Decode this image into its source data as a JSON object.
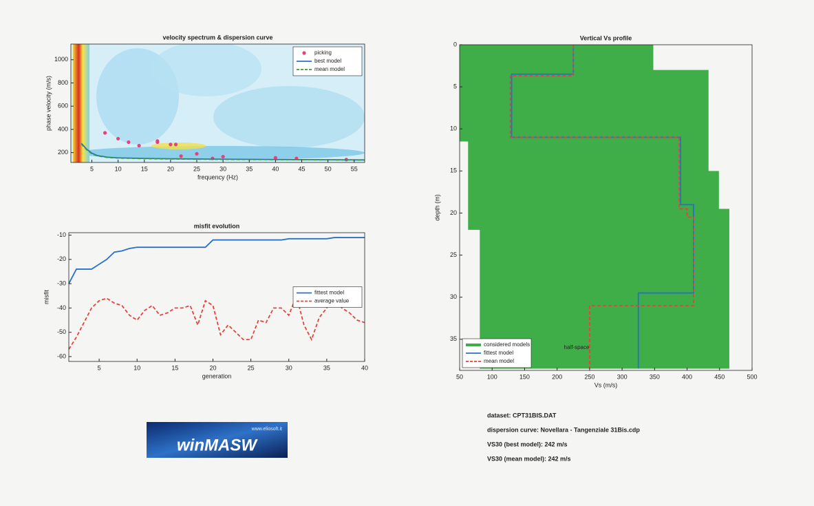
{
  "chart_data": [
    {
      "type": "line",
      "title": "velocity spectrum & dispersion curve",
      "xlabel": "frequency (Hz)",
      "ylabel": "phase velocity (m/s)",
      "xlim": [
        1,
        57
      ],
      "ylim": [
        115,
        1135
      ],
      "xticks": [
        5,
        10,
        15,
        20,
        25,
        30,
        35,
        40,
        45,
        50,
        55
      ],
      "yticks": [
        200,
        400,
        600,
        800,
        1000
      ],
      "legend": "upper right",
      "series": [
        {
          "name": "picking",
          "color": "#e8417a",
          "marker": "o",
          "x": [
            7.5,
            10,
            12,
            14,
            17.5,
            20,
            22,
            25,
            30,
            40,
            44,
            53.5,
            17.5,
            21,
            28
          ],
          "values": [
            370,
            320,
            290,
            260,
            300,
            270,
            170,
            190,
            165,
            155,
            150,
            140,
            290,
            270,
            150
          ]
        },
        {
          "name": "best model",
          "color": "#2a6fc9",
          "x": [
            3,
            4,
            5,
            6,
            8,
            10,
            15,
            20,
            30,
            40,
            57
          ],
          "values": [
            280,
            230,
            195,
            175,
            160,
            155,
            150,
            147,
            143,
            140,
            137
          ]
        },
        {
          "name": "mean model",
          "color": "#3a9a3a",
          "dash": true,
          "x": [
            3,
            4,
            5,
            6,
            8,
            10,
            15,
            20,
            30,
            40,
            57
          ],
          "values": [
            275,
            225,
            190,
            172,
            158,
            153,
            148,
            145,
            141,
            139,
            136
          ]
        }
      ]
    },
    {
      "type": "line",
      "title": "misfit evolution",
      "xlabel": "generation",
      "ylabel": "misfit",
      "xlim": [
        1,
        40
      ],
      "ylim": [
        -62,
        -9
      ],
      "xticks": [
        5,
        10,
        15,
        20,
        25,
        30,
        35,
        40
      ],
      "yticks": [
        -60,
        -50,
        -40,
        -30,
        -20,
        -10
      ],
      "legend": "center right",
      "x": [
        1,
        2,
        3,
        4,
        5,
        6,
        7,
        8,
        9,
        10,
        11,
        12,
        13,
        14,
        15,
        16,
        17,
        18,
        19,
        20,
        21,
        22,
        23,
        24,
        25,
        26,
        27,
        28,
        29,
        30,
        31,
        32,
        33,
        34,
        35,
        36,
        37,
        38,
        39,
        40
      ],
      "series": [
        {
          "name": "fittest model",
          "color": "#2a6fc9",
          "values": [
            -30,
            -24,
            -24,
            -24,
            -22,
            -20,
            -17,
            -16.5,
            -15.5,
            -15,
            -15,
            -15,
            -15,
            -15,
            -15,
            -15,
            -15,
            -15,
            -15,
            -12,
            -12,
            -12,
            -12,
            -12,
            -12,
            -12,
            -12,
            -12,
            -12,
            -11.5,
            -11.5,
            -11.5,
            -11.5,
            -11.5,
            -11.5,
            -11,
            -11,
            -11,
            -11,
            -11
          ]
        },
        {
          "name": "average value",
          "color": "#e8413c",
          "dash": true,
          "values": [
            -57,
            -52,
            -46,
            -40,
            -37,
            -36,
            -38,
            -39,
            -43,
            -45,
            -41,
            -39,
            -43,
            -42,
            -40,
            -40,
            -39,
            -47,
            -37,
            -39,
            -51,
            -47,
            -50,
            -53,
            -53,
            -45,
            -46,
            -40,
            -40,
            -43,
            -35,
            -47,
            -53,
            -44,
            -40,
            -36,
            -40,
            -42,
            -45,
            -46
          ]
        }
      ]
    },
    {
      "type": "line",
      "title": "Vertical Vs profile",
      "xlabel": "Vs (m/s)",
      "ylabel": "depth (m)",
      "xlim": [
        50,
        500
      ],
      "ylim": [
        0,
        38.7
      ],
      "invert_y": true,
      "xticks": [
        50,
        100,
        150,
        200,
        250,
        300,
        350,
        400,
        450,
        500
      ],
      "yticks": [
        0,
        5,
        10,
        15,
        20,
        25,
        30,
        35
      ],
      "legend": "lower left",
      "annotations": [
        {
          "text": "half-space",
          "x": 230,
          "y": 36
        }
      ],
      "series": [
        {
          "name": "considered models",
          "color": "#3fae49",
          "fill": true,
          "x": [
            50,
            348,
            348,
            433,
            433,
            449,
            449,
            465,
            465,
            81,
            81,
            63,
            63,
            50
          ],
          "values": [
            0,
            0,
            3,
            3,
            15,
            15,
            19.5,
            19.5,
            38.5,
            38.5,
            22,
            22,
            11.5,
            11.5
          ]
        },
        {
          "name": "fittest model",
          "color": "#2a6fc9",
          "x": [
            225,
            225,
            130,
            130,
            390,
            390,
            410,
            410,
            325,
            325
          ],
          "values": [
            0,
            3.5,
            3.5,
            11,
            11,
            19,
            19,
            29.5,
            29.5,
            38.5
          ]
        },
        {
          "name": "mean model",
          "color": "#e8413c",
          "dash": true,
          "x": [
            225,
            225,
            128,
            128,
            388,
            388,
            400,
            400,
            410,
            410,
            250,
            250
          ],
          "values": [
            0,
            3.7,
            3.7,
            11,
            11,
            19.5,
            19.5,
            20.5,
            20.5,
            31,
            31,
            38.5
          ]
        }
      ]
    }
  ],
  "info": [
    "dataset: CPT31BIS.DAT",
    "dispersion curve: Novellara - Tangenziale 31Bis.cdp",
    "VS30 (best model): 242 m/s",
    "VS30 (mean model): 242 m/s"
  ],
  "logo": {
    "url": "www.eliosoft.it",
    "name": "winMASW"
  }
}
